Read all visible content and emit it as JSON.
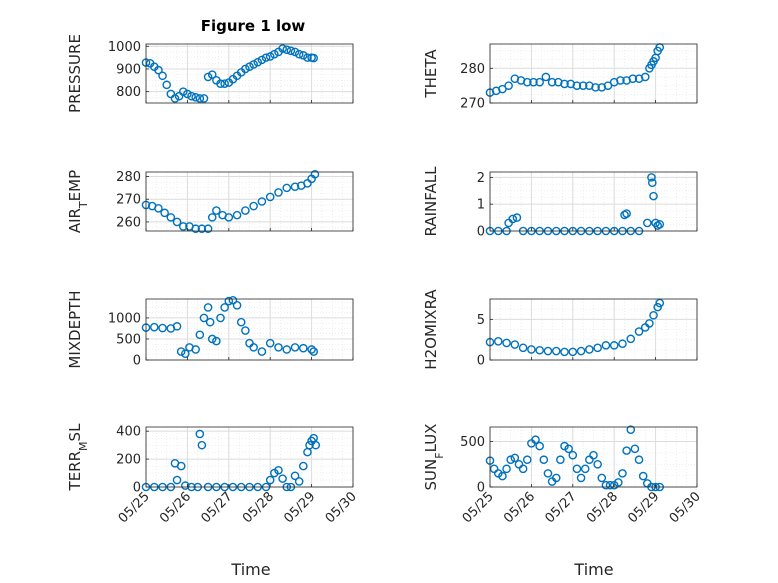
{
  "figure": {
    "title": "Figure 1 low",
    "xlabel": "Time",
    "x_ticks": [
      "05/25",
      "05/26",
      "05/27",
      "05/28",
      "05/29",
      "05/30"
    ],
    "marker_color": "#0072BD"
  },
  "chart_data": [
    {
      "type": "scatter",
      "ylabel": "PRESSURE",
      "title": "Figure 1 low",
      "xlim": [
        "05/25",
        "05/30"
      ],
      "ylim": [
        750,
        1010
      ],
      "yticks": [
        800,
        900,
        1000
      ],
      "grid": "on",
      "x": [
        0.0,
        0.1,
        0.2,
        0.3,
        0.4,
        0.5,
        0.6,
        0.7,
        0.8,
        0.9,
        1.0,
        1.1,
        1.2,
        1.3,
        1.4,
        1.5,
        1.6,
        1.7,
        1.8,
        1.9,
        2.0,
        2.1,
        2.2,
        2.3,
        2.4,
        2.5,
        2.6,
        2.7,
        2.8,
        2.9,
        3.0,
        3.1,
        3.2,
        3.3,
        3.4,
        3.5,
        3.6,
        3.7,
        3.8,
        3.9,
        4.0,
        4.05
      ],
      "y": [
        928,
        925,
        910,
        895,
        870,
        830,
        790,
        770,
        780,
        800,
        790,
        780,
        775,
        770,
        770,
        865,
        875,
        850,
        835,
        835,
        840,
        855,
        870,
        885,
        900,
        910,
        920,
        930,
        940,
        950,
        955,
        965,
        975,
        990,
        985,
        980,
        975,
        965,
        960,
        950,
        950,
        948
      ]
    },
    {
      "type": "scatter",
      "ylabel": "THETA",
      "xlim": [
        "05/25",
        "05/30"
      ],
      "ylim": [
        270,
        287
      ],
      "yticks": [
        270,
        280
      ],
      "grid": "on",
      "x": [
        0.0,
        0.15,
        0.3,
        0.45,
        0.6,
        0.75,
        0.9,
        1.05,
        1.2,
        1.35,
        1.5,
        1.65,
        1.8,
        1.95,
        2.1,
        2.25,
        2.4,
        2.55,
        2.7,
        2.85,
        3.0,
        3.15,
        3.3,
        3.45,
        3.6,
        3.75,
        3.85,
        3.9,
        3.95,
        4.0,
        4.05,
        4.1
      ],
      "y": [
        273,
        273.5,
        274,
        275,
        277,
        276.5,
        276,
        276,
        276,
        277.5,
        276,
        276,
        275.5,
        275.5,
        275,
        275,
        275,
        274.5,
        274.5,
        275,
        276,
        276.5,
        276.5,
        277,
        277,
        277.5,
        280,
        281,
        282,
        283,
        285,
        286
      ]
    },
    {
      "type": "scatter",
      "ylabel": "AIR_TEMP",
      "xlim": [
        "05/25",
        "05/30"
      ],
      "ylim": [
        256,
        282
      ],
      "yticks": [
        260,
        270,
        280
      ],
      "grid": "on",
      "x": [
        0.0,
        0.15,
        0.3,
        0.45,
        0.6,
        0.75,
        0.9,
        1.05,
        1.2,
        1.35,
        1.5,
        1.6,
        1.7,
        1.85,
        2.0,
        2.2,
        2.4,
        2.6,
        2.8,
        3.0,
        3.2,
        3.4,
        3.6,
        3.75,
        3.9,
        4.0,
        4.08
      ],
      "y": [
        267.5,
        267,
        266,
        264,
        262,
        260,
        258,
        258,
        257,
        257,
        257,
        262,
        265,
        263,
        262,
        263,
        265,
        267,
        269,
        271,
        273,
        275,
        275.5,
        276,
        277,
        279,
        281
      ]
    },
    {
      "type": "scatter",
      "ylabel": "RAINFALL",
      "xlim": [
        "05/25",
        "05/30"
      ],
      "ylim": [
        0,
        2.2
      ],
      "yticks": [
        0,
        1,
        2
      ],
      "grid": "on",
      "x": [
        0.0,
        0.2,
        0.4,
        0.45,
        0.55,
        0.65,
        0.8,
        1.0,
        1.2,
        1.4,
        1.6,
        1.8,
        2.0,
        2.2,
        2.4,
        2.6,
        2.8,
        3.0,
        3.2,
        3.25,
        3.3,
        3.4,
        3.6,
        3.8,
        3.9,
        3.92,
        3.95,
        4.0,
        4.05,
        4.1
      ],
      "y": [
        0,
        0,
        0,
        0.3,
        0.45,
        0.5,
        0,
        0,
        0,
        0,
        0,
        0,
        0,
        0,
        0,
        0,
        0,
        0,
        0,
        0.6,
        0.65,
        0,
        0,
        0.3,
        2.0,
        1.8,
        1.3,
        0.3,
        0.2,
        0.25
      ]
    },
    {
      "type": "scatter",
      "ylabel": "MIXDEPTH",
      "xlim": [
        "05/25",
        "05/30"
      ],
      "ylim": [
        0,
        1450
      ],
      "yticks": [
        0,
        500,
        1000
      ],
      "grid": "on",
      "x": [
        0.0,
        0.2,
        0.4,
        0.6,
        0.75,
        0.85,
        0.95,
        1.05,
        1.2,
        1.3,
        1.4,
        1.5,
        1.55,
        1.6,
        1.7,
        1.8,
        1.9,
        2.0,
        2.1,
        2.2,
        2.3,
        2.4,
        2.5,
        2.6,
        2.8,
        3.0,
        3.2,
        3.4,
        3.6,
        3.8,
        4.0,
        4.05
      ],
      "y": [
        770,
        780,
        760,
        750,
        800,
        200,
        150,
        300,
        250,
        600,
        1000,
        1250,
        900,
        500,
        450,
        1000,
        1250,
        1400,
        1420,
        1300,
        900,
        700,
        400,
        300,
        200,
        400,
        300,
        250,
        300,
        280,
        250,
        200
      ]
    },
    {
      "type": "scatter",
      "ylabel": "H2OMIXRA",
      "xlim": [
        "05/25",
        "05/30"
      ],
      "ylim": [
        0,
        7.5
      ],
      "yticks": [
        0,
        5
      ],
      "grid": "on",
      "x": [
        0.0,
        0.2,
        0.4,
        0.6,
        0.8,
        1.0,
        1.2,
        1.4,
        1.6,
        1.8,
        2.0,
        2.2,
        2.4,
        2.6,
        2.8,
        3.0,
        3.2,
        3.4,
        3.6,
        3.75,
        3.85,
        3.95,
        4.05,
        4.1
      ],
      "y": [
        2.2,
        2.3,
        2.1,
        1.9,
        1.5,
        1.3,
        1.2,
        1.1,
        1.1,
        1.0,
        1.0,
        1.1,
        1.3,
        1.5,
        1.8,
        1.8,
        2.0,
        2.6,
        3.5,
        4.0,
        4.5,
        5.5,
        6.5,
        7.0
      ]
    },
    {
      "type": "scatter",
      "ylabel": "TERR_MSL",
      "xlim": [
        "05/25",
        "05/30"
      ],
      "ylim": [
        0,
        430
      ],
      "yticks": [
        0,
        200,
        400
      ],
      "grid": "on",
      "x": [
        0.0,
        0.2,
        0.4,
        0.6,
        0.7,
        0.75,
        0.85,
        0.95,
        1.1,
        1.25,
        1.3,
        1.35,
        1.5,
        1.7,
        1.9,
        2.1,
        2.3,
        2.5,
        2.7,
        2.9,
        3.0,
        3.1,
        3.2,
        3.3,
        3.4,
        3.5,
        3.6,
        3.7,
        3.8,
        3.9,
        3.95,
        4.0,
        4.05,
        4.1
      ],
      "y": [
        0,
        0,
        0,
        0,
        170,
        50,
        150,
        10,
        0,
        0,
        380,
        300,
        0,
        0,
        0,
        0,
        0,
        0,
        0,
        0,
        50,
        100,
        120,
        60,
        0,
        0,
        80,
        40,
        150,
        250,
        300,
        330,
        350,
        300
      ]
    },
    {
      "type": "scatter",
      "ylabel": "SUN_FLUX",
      "xlim": [
        "05/25",
        "05/30"
      ],
      "ylim": [
        0,
        660
      ],
      "yticks": [
        0,
        500
      ],
      "grid": "on",
      "x": [
        0.0,
        0.1,
        0.2,
        0.3,
        0.4,
        0.5,
        0.6,
        0.7,
        0.8,
        0.9,
        1.0,
        1.1,
        1.2,
        1.3,
        1.4,
        1.5,
        1.6,
        1.7,
        1.8,
        1.9,
        2.0,
        2.1,
        2.2,
        2.3,
        2.4,
        2.5,
        2.6,
        2.7,
        2.8,
        2.9,
        3.0,
        3.1,
        3.2,
        3.3,
        3.4,
        3.5,
        3.6,
        3.7,
        3.8,
        3.9,
        4.0,
        4.1
      ],
      "y": [
        290,
        200,
        150,
        120,
        200,
        300,
        320,
        250,
        200,
        300,
        480,
        520,
        450,
        300,
        150,
        60,
        100,
        300,
        450,
        420,
        350,
        200,
        100,
        200,
        300,
        350,
        250,
        100,
        20,
        20,
        20,
        50,
        150,
        400,
        630,
        420,
        300,
        120,
        40,
        0,
        0,
        0
      ]
    }
  ]
}
